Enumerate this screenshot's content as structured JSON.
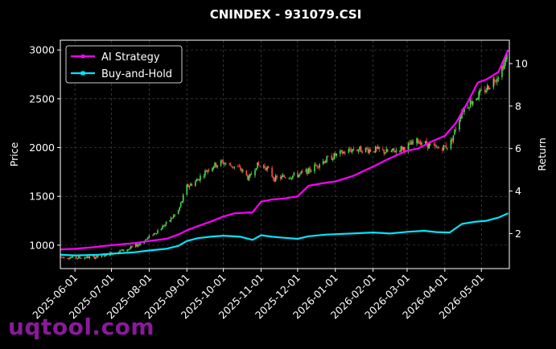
{
  "chart_data": {
    "type": "candlestick+line",
    "title": "CNINDEX - 931079.CSI",
    "ylabel_left": "Price",
    "ylabel_right": "Return",
    "ylim_left": [
      760,
      3100
    ],
    "ylim_right": [
      0.35,
      11.1
    ],
    "y_ticks_left": [
      "1000",
      "1500",
      "2000",
      "2500",
      "3000"
    ],
    "y_ticks_right": [
      "2",
      "4",
      "6",
      "8",
      "10"
    ],
    "x_range": [
      "2025-05-20",
      "2026-05-24"
    ],
    "x_ticks": [
      "2025-06-01",
      "2025-07-01",
      "2025-08-01",
      "2025-09-01",
      "2025-10-01",
      "2025-11-01",
      "2025-12-01",
      "2026-01-01",
      "2026-02-01",
      "2026-03-01",
      "2026-04-01",
      "2026-05-01"
    ],
    "grid": true,
    "legend_position": "top-left",
    "colors": {
      "ai": "#ff00ff",
      "bh": "#00e5ff",
      "up": "#4ddb4d",
      "down": "#ff4d4d",
      "grid": "#555555"
    },
    "price_anchors": [
      [
        "2025-05-20",
        880
      ],
      [
        "2025-06-01",
        870
      ],
      [
        "2025-06-20",
        880
      ],
      [
        "2025-07-01",
        920
      ],
      [
        "2025-07-15",
        960
      ],
      [
        "2025-07-25",
        1020
      ],
      [
        "2025-08-05",
        1120
      ],
      [
        "2025-08-15",
        1220
      ],
      [
        "2025-08-25",
        1350
      ],
      [
        "2025-09-01",
        1600
      ],
      [
        "2025-09-08",
        1650
      ],
      [
        "2025-09-20",
        1800
      ],
      [
        "2025-09-30",
        1850
      ],
      [
        "2025-10-15",
        1780
      ],
      [
        "2025-10-22",
        1680
      ],
      [
        "2025-10-28",
        1820
      ],
      [
        "2025-11-05",
        1800
      ],
      [
        "2025-11-12",
        1680
      ],
      [
        "2025-11-20",
        1700
      ],
      [
        "2025-12-01",
        1720
      ],
      [
        "2025-12-10",
        1760
      ],
      [
        "2025-12-20",
        1850
      ],
      [
        "2026-01-01",
        1920
      ],
      [
        "2026-01-15",
        1980
      ],
      [
        "2026-02-01",
        1980
      ],
      [
        "2026-02-15",
        1950
      ],
      [
        "2026-03-01",
        2010
      ],
      [
        "2026-03-10",
        2070
      ],
      [
        "2026-03-25",
        1990
      ],
      [
        "2026-04-05",
        2020
      ],
      [
        "2026-04-15",
        2380
      ],
      [
        "2026-04-25",
        2500
      ],
      [
        "2026-05-05",
        2600
      ],
      [
        "2026-05-15",
        2750
      ],
      [
        "2026-05-23",
        2950
      ]
    ],
    "series": [
      {
        "name": "AI Strategy",
        "points": [
          [
            "2025-05-20",
            1.25
          ],
          [
            "2025-06-01",
            1.28
          ],
          [
            "2025-06-15",
            1.35
          ],
          [
            "2025-07-01",
            1.45
          ],
          [
            "2025-07-20",
            1.55
          ],
          [
            "2025-08-01",
            1.65
          ],
          [
            "2025-08-15",
            1.75
          ],
          [
            "2025-08-25",
            1.95
          ],
          [
            "2025-09-01",
            2.15
          ],
          [
            "2025-09-10",
            2.35
          ],
          [
            "2025-09-20",
            2.55
          ],
          [
            "2025-10-01",
            2.8
          ],
          [
            "2025-10-10",
            2.95
          ],
          [
            "2025-10-25",
            3.0
          ],
          [
            "2025-11-01",
            3.5
          ],
          [
            "2025-11-10",
            3.6
          ],
          [
            "2025-11-20",
            3.65
          ],
          [
            "2025-12-01",
            3.75
          ],
          [
            "2025-12-10",
            4.25
          ],
          [
            "2025-12-25",
            4.4
          ],
          [
            "2026-01-01",
            4.45
          ],
          [
            "2026-01-15",
            4.7
          ],
          [
            "2026-02-01",
            5.15
          ],
          [
            "2026-02-15",
            5.55
          ],
          [
            "2026-03-01",
            5.9
          ],
          [
            "2026-03-10",
            6.0
          ],
          [
            "2026-03-20",
            6.3
          ],
          [
            "2026-04-01",
            6.6
          ],
          [
            "2026-04-10",
            7.2
          ],
          [
            "2026-04-20",
            8.2
          ],
          [
            "2026-04-28",
            9.1
          ],
          [
            "2026-05-05",
            9.25
          ],
          [
            "2026-05-15",
            9.6
          ],
          [
            "2026-05-23",
            10.65
          ]
        ]
      },
      {
        "name": "Buy-and-Hold",
        "points": [
          [
            "2025-05-20",
            1.0
          ],
          [
            "2025-06-01",
            0.97
          ],
          [
            "2025-06-20",
            1.0
          ],
          [
            "2025-07-01",
            1.05
          ],
          [
            "2025-07-20",
            1.12
          ],
          [
            "2025-08-01",
            1.2
          ],
          [
            "2025-08-15",
            1.28
          ],
          [
            "2025-08-25",
            1.42
          ],
          [
            "2025-09-01",
            1.65
          ],
          [
            "2025-09-10",
            1.78
          ],
          [
            "2025-09-20",
            1.85
          ],
          [
            "2025-10-01",
            1.9
          ],
          [
            "2025-10-15",
            1.85
          ],
          [
            "2025-10-25",
            1.7
          ],
          [
            "2025-11-01",
            1.92
          ],
          [
            "2025-11-10",
            1.85
          ],
          [
            "2025-11-20",
            1.8
          ],
          [
            "2025-12-01",
            1.75
          ],
          [
            "2025-12-10",
            1.87
          ],
          [
            "2025-12-25",
            1.95
          ],
          [
            "2026-01-01",
            1.97
          ],
          [
            "2026-01-15",
            2.0
          ],
          [
            "2026-02-01",
            2.05
          ],
          [
            "2026-02-15",
            2.0
          ],
          [
            "2026-03-01",
            2.08
          ],
          [
            "2026-03-15",
            2.13
          ],
          [
            "2026-03-25",
            2.07
          ],
          [
            "2026-04-05",
            2.05
          ],
          [
            "2026-04-15",
            2.45
          ],
          [
            "2026-04-25",
            2.55
          ],
          [
            "2026-05-05",
            2.6
          ],
          [
            "2026-05-15",
            2.75
          ],
          [
            "2026-05-23",
            2.95
          ]
        ]
      }
    ]
  },
  "watermark": "uqtool.com"
}
